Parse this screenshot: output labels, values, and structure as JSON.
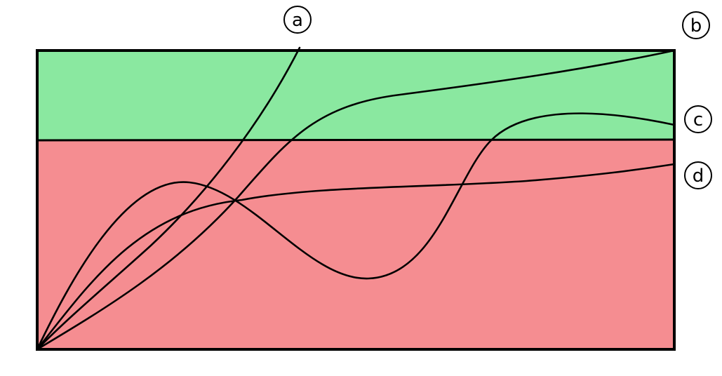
{
  "colors": {
    "upper_zone": "#8ae8a0",
    "lower_zone": "#f58d91",
    "stroke": "#000000"
  },
  "curves": [
    {
      "id": "a",
      "label": "a"
    },
    {
      "id": "b",
      "label": "b"
    },
    {
      "id": "c",
      "label": "c"
    },
    {
      "id": "d",
      "label": "d"
    }
  ]
}
